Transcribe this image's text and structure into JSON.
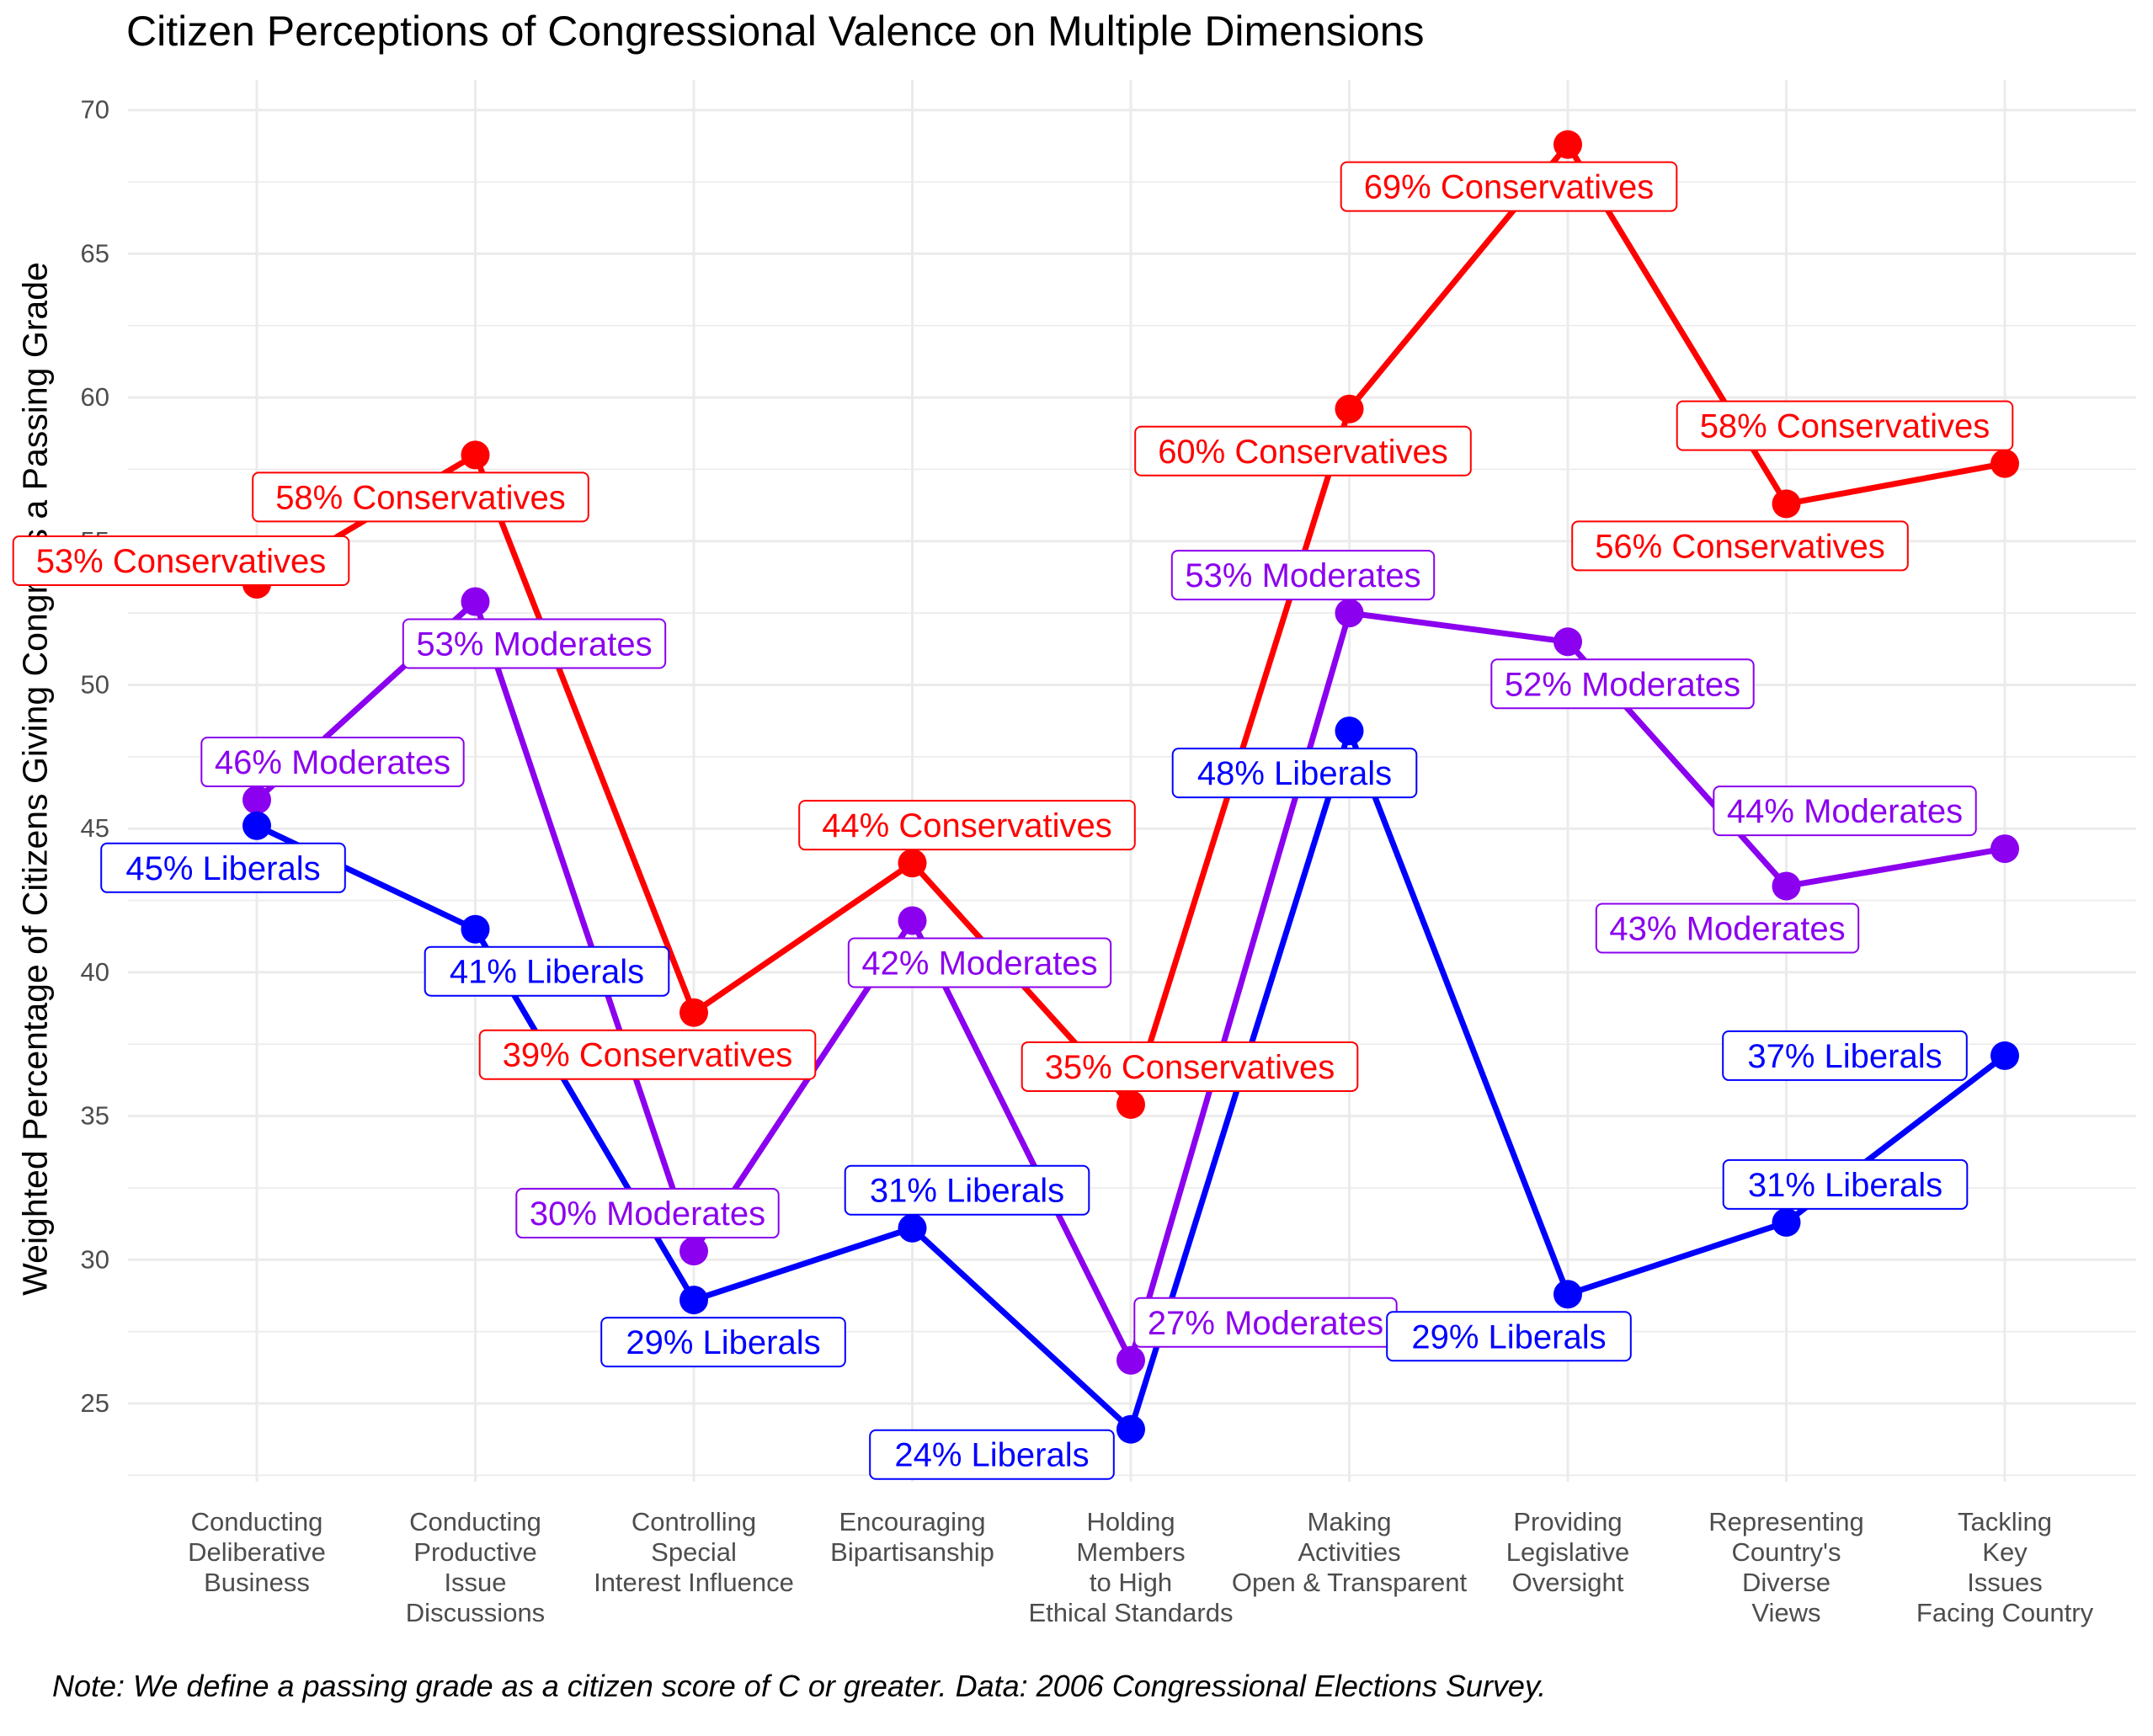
{
  "title": "Citizen Perceptions of Congressional Valence on Multiple Dimensions",
  "caption": "Note: We define a passing grade as a citizen score of C or greater. Data: 2006 Congressional Elections Survey.",
  "chart_data": {
    "type": "line",
    "title": "Citizen Perceptions of Congressional Valence on Multiple Dimensions",
    "xlabel": "",
    "ylabel": "Weighted Percentage of Citizens Giving Congress a Passing Grade",
    "ylim": [
      22,
      70.5
    ],
    "yticks": [
      25,
      30,
      35,
      40,
      45,
      50,
      55,
      60,
      65,
      70
    ],
    "grid": true,
    "legend": "none",
    "categories": [
      "Conducting\nDeliberative\nBusiness",
      "Conducting\nProductive\nIssue\nDiscussions",
      "Controlling\nSpecial\nInterest Influence",
      "Encouraging\nBipartisanship",
      "Holding\nMembers\nto High\nEthical Standards",
      "Making\nActivities\nOpen & Transparent",
      "Providing\nLegislative\nOversight",
      "Representing\nCountry's\nDiverse\nViews",
      "Tackling\nKey\nIssues\nFacing Country"
    ],
    "series": [
      {
        "group": "conservatives",
        "color": "#ff0000",
        "values": [
          53.5,
          58.0,
          38.6,
          43.8,
          35.4,
          59.6,
          68.8,
          56.3,
          57.7
        ],
        "labels": [
          "53% Conservatives",
          "58% Conservatives",
          "39% Conservatives",
          "44% Conservatives",
          "35% Conservatives",
          "60% Conservatives",
          "69% Conservatives",
          "56% Conservatives",
          "58% Conservatives"
        ]
      },
      {
        "group": "moderates",
        "color": "#8b00ee",
        "values": [
          46.0,
          52.9,
          30.3,
          41.8,
          26.5,
          52.5,
          51.5,
          43.0,
          44.3
        ],
        "labels": [
          "46% Moderates",
          "53% Moderates",
          "30% Moderates",
          "42% Moderates",
          "27% Moderates",
          "53% Moderates",
          "52% Moderates",
          "43% Moderates",
          "44% Moderates"
        ]
      },
      {
        "group": "liberals",
        "color": "#0000ff",
        "values": [
          45.1,
          41.5,
          28.6,
          31.1,
          24.1,
          48.4,
          28.8,
          31.3,
          37.1
        ],
        "labels": [
          "45% Liberals",
          "41% Liberals",
          "29% Liberals",
          "31% Liberals",
          "24% Liberals",
          "48% Liberals",
          "29% Liberals",
          "31% Liberals",
          "37% Liberals"
        ]
      }
    ]
  }
}
